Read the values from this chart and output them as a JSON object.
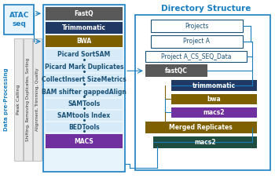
{
  "bg": "#ffffff",
  "title_dir": "Directory Structure",
  "atac_label": "ATAC\nseq",
  "connector_color": "#1a7fc1",
  "pipeline_boxes": [
    {
      "label": "FastQ",
      "fc": "#595959",
      "tc": "#ffffff"
    },
    {
      "label": "Trimmomatic",
      "fc": "#1f3864",
      "tc": "#ffffff"
    },
    {
      "label": "BWA",
      "fc": "#7f6000",
      "tc": "#ffffff"
    },
    {
      "label": "Picard SortSAM",
      "fc": "#d6eaf8",
      "tc": "#1a5276"
    },
    {
      "label": "Picard Mark Duplicates",
      "fc": "#d6eaf8",
      "tc": "#1a5276"
    },
    {
      "label": "CollectInsert SizeMetrics",
      "fc": "#d6eaf8",
      "tc": "#1a5276"
    },
    {
      "label": "BAM shifter gappedAlign",
      "fc": "#d6eaf8",
      "tc": "#1a5276"
    },
    {
      "label": "SAMTools",
      "fc": "#d6eaf8",
      "tc": "#1a5276"
    },
    {
      "label": "SAMtools Index",
      "fc": "#d6eaf8",
      "tc": "#1a5276"
    },
    {
      "label": "BEDTools",
      "fc": "#d6eaf8",
      "tc": "#1a5276"
    },
    {
      "label": "MACS",
      "fc": "#7030a0",
      "tc": "#ffffff"
    }
  ],
  "dir_boxes": [
    {
      "label": "Projects",
      "fc": "#ffffff",
      "tc": "#1a5276",
      "ec": "#1a5276"
    },
    {
      "label": "Project A",
      "fc": "#ffffff",
      "tc": "#1a5276",
      "ec": "#1a5276"
    },
    {
      "label": "Project A_CS_SEQ_Data",
      "fc": "#ffffff",
      "tc": "#1a5276",
      "ec": "#1a5276"
    },
    {
      "label": "fastQC",
      "fc": "#595959",
      "tc": "#ffffff",
      "ec": "#595959"
    },
    {
      "label": "trimmomatic",
      "fc": "#1f3864",
      "tc": "#ffffff",
      "ec": "#1f3864"
    },
    {
      "label": "bwa",
      "fc": "#7f6000",
      "tc": "#ffffff",
      "ec": "#7f6000"
    },
    {
      "label": "macs2",
      "fc": "#7030a0",
      "tc": "#ffffff",
      "ec": "#7030a0"
    },
    {
      "label": "Merged Replicates",
      "fc": "#7f6000",
      "tc": "#ffffff",
      "ec": "#7f6000"
    },
    {
      "label": "macs2",
      "fc": "#1f4e40",
      "tc": "#ffffff",
      "ec": "#1f4e40"
    }
  ]
}
